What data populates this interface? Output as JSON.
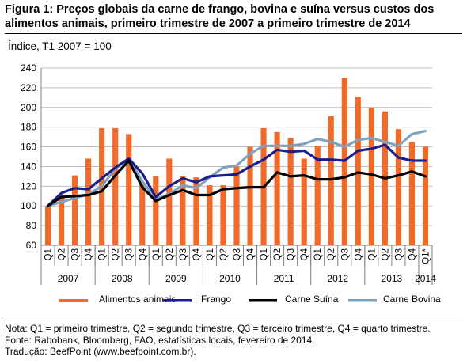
{
  "title_line1": "Figura 1: Preços globais da carne de frango, bovina e suína versus custos dos",
  "title_line2": "alimentos animais, primeiro trimestre de 2007 a primeiro trimestre de 2014",
  "notes": [
    "Nota: Q1 = primeiro trimestre, Q2 = segundo trimestre, Q3 = terceiro trimestre, Q4 = quarto trimestre.",
    "Fonte: Rabobank, Bloomberg, FAO, estatísticas locais, fevereiro de 2014.",
    "Tradução: BeefPoint (www.beefpoint.com.br)."
  ],
  "colors": {
    "bars": "#f26a2a",
    "frango": "#1a1f8c",
    "suina": "#000000",
    "bovina": "#7fa3bf",
    "grid": "#bfbfbf",
    "axis": "#808080"
  },
  "chart_data": {
    "type": "bar",
    "title": "Figura 1: Preços globais da carne de frango, bovina e suína versus custos dos alimentos animais, primeiro trimestre de 2007 a primeiro trimestre de 2014",
    "ylabel": "Índice, T1 2007 = 100",
    "ylim": [
      60,
      240
    ],
    "yticks": [
      60,
      80,
      100,
      120,
      140,
      160,
      180,
      200,
      220,
      240
    ],
    "grid": true,
    "legend_position": "bottom",
    "categories": [
      "Q1",
      "Q2",
      "Q3",
      "Q4",
      "Q1",
      "Q2",
      "Q3",
      "Q4",
      "Q1",
      "Q2",
      "Q3",
      "Q4",
      "Q1",
      "Q2",
      "Q3",
      "Q4",
      "Q1",
      "Q2",
      "Q3",
      "Q4",
      "Q1",
      "Q2",
      "Q3",
      "Q4",
      "Q1",
      "Q2",
      "Q3",
      "Q4",
      "Q1*"
    ],
    "years": [
      {
        "label": "2007",
        "start": 0,
        "count": 4
      },
      {
        "label": "2008",
        "start": 4,
        "count": 4
      },
      {
        "label": "2009",
        "start": 8,
        "count": 4
      },
      {
        "label": "2010",
        "start": 12,
        "count": 4
      },
      {
        "label": "2011",
        "start": 16,
        "count": 4
      },
      {
        "label": "2012",
        "start": 20,
        "count": 4
      },
      {
        "label": "2013",
        "start": 24,
        "count": 4
      },
      {
        "label": "2014",
        "start": 28,
        "count": 1
      }
    ],
    "series": [
      {
        "name": "Alimentos animais",
        "kind": "bar",
        "values": [
          100,
          111,
          131,
          148,
          179,
          179,
          173,
          122,
          130,
          148,
          130,
          129,
          121,
          121,
          140,
          160,
          179,
          175,
          169,
          148,
          161,
          191,
          230,
          211,
          200,
          196,
          178,
          165,
          160
        ]
      },
      {
        "name": "Frango",
        "kind": "line",
        "values": [
          100,
          113,
          118,
          117,
          128,
          139,
          148,
          133,
          109,
          120,
          128,
          124,
          130,
          131,
          132,
          140,
          147,
          157,
          155,
          156,
          147,
          147,
          146,
          156,
          158,
          162,
          149,
          146,
          146
        ]
      },
      {
        "name": "Carne Suína",
        "kind": "line",
        "values": [
          100,
          109,
          110,
          111,
          115,
          131,
          146,
          119,
          105,
          111,
          116,
          111,
          111,
          117,
          118,
          119,
          119,
          134,
          130,
          131,
          127,
          127,
          129,
          134,
          132,
          128,
          131,
          135,
          130
        ]
      },
      {
        "name": "Carne Bovina",
        "kind": "line",
        "values": [
          100,
          104,
          108,
          112,
          120,
          138,
          148,
          125,
          107,
          112,
          121,
          118,
          129,
          139,
          141,
          153,
          161,
          161,
          161,
          163,
          168,
          165,
          160,
          167,
          169,
          165,
          161,
          173,
          176
        ]
      }
    ]
  }
}
